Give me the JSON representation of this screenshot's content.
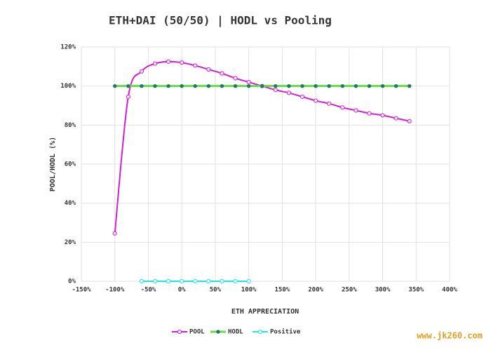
{
  "chart_data": {
    "type": "line",
    "title": "ETH+DAI (50/50) | HODL vs Pooling",
    "x_label": "ETH APPRECIATION",
    "y_label": "POOL/HODL (%)",
    "xlim": [
      -150,
      400
    ],
    "ylim": [
      0,
      120
    ],
    "xticks": [
      {
        "value": -150,
        "label": "-150%"
      },
      {
        "value": -100,
        "label": "-100%"
      },
      {
        "value": -50,
        "label": "-50%"
      },
      {
        "value": 0,
        "label": "0%"
      },
      {
        "value": 50,
        "label": "50%"
      },
      {
        "value": 100,
        "label": "100%"
      },
      {
        "value": 150,
        "label": "150%"
      },
      {
        "value": 200,
        "label": "200%"
      },
      {
        "value": 250,
        "label": "250%"
      },
      {
        "value": 300,
        "label": "300%"
      },
      {
        "value": 350,
        "label": "350%"
      },
      {
        "value": 400,
        "label": "400%"
      }
    ],
    "yticks": [
      {
        "value": 0,
        "label": "0%"
      },
      {
        "value": 20,
        "label": "20%"
      },
      {
        "value": 40,
        "label": "40%"
      },
      {
        "value": 60,
        "label": "60%"
      },
      {
        "value": 80,
        "label": "80%"
      },
      {
        "value": 100,
        "label": "100%"
      },
      {
        "value": 120,
        "label": "120%"
      }
    ],
    "grid": true,
    "legend": "bottom",
    "series": [
      {
        "name": "POOL",
        "color": "#d21fd2",
        "smooth": true,
        "x": [
          -100,
          -80,
          -60,
          -40,
          -20,
          0,
          20,
          40,
          60,
          80,
          100,
          120,
          140,
          160,
          180,
          200,
          220,
          240,
          260,
          280,
          300,
          320,
          340
        ],
        "values": [
          24.5,
          94.5,
          107.5,
          111.5,
          112.5,
          112,
          110.5,
          108.5,
          106.5,
          104,
          102,
          100,
          98,
          96.5,
          94.5,
          92.5,
          91,
          89,
          87.5,
          86,
          85,
          83.5,
          82
        ]
      },
      {
        "name": "HODL",
        "color": "#6ad94a",
        "x": [
          -100,
          -80,
          -60,
          -40,
          -20,
          0,
          20,
          40,
          60,
          80,
          100,
          120,
          140,
          160,
          180,
          200,
          220,
          240,
          260,
          280,
          300,
          320,
          340
        ],
        "values": [
          100,
          100,
          100,
          100,
          100,
          100,
          100,
          100,
          100,
          100,
          100,
          100,
          100,
          100,
          100,
          100,
          100,
          100,
          100,
          100,
          100,
          100,
          100
        ]
      },
      {
        "name": "Positive",
        "color": "#22e5e5",
        "x": [
          -60,
          -40,
          -20,
          0,
          20,
          40,
          60,
          80,
          100
        ],
        "values": [
          0,
          0,
          0,
          0,
          0,
          0,
          0,
          0,
          0
        ]
      }
    ],
    "watermark": "www.jk260.com"
  }
}
